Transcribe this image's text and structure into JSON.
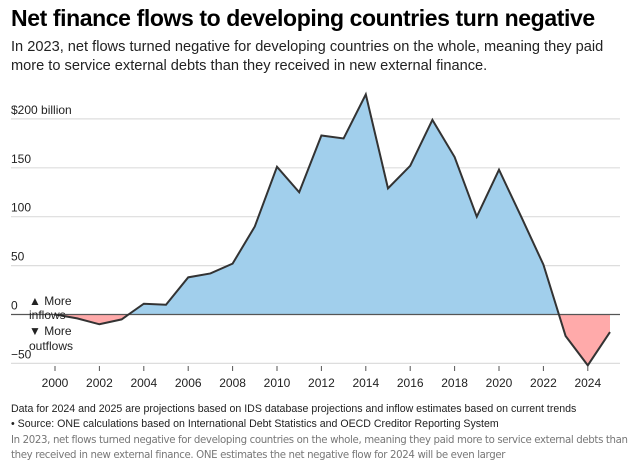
{
  "header": {
    "title": "Net finance flows to developing countries turn negative",
    "subtitle": "In 2023, net flows turned negative for developing countries on the whole, meaning they paid more to service external debts than they received in new external finance."
  },
  "chart_data": {
    "type": "area",
    "title": "Net finance flows to developing countries turn negative",
    "xlabel": "",
    "ylabel": "$ billion",
    "x": [
      2000,
      2001,
      2002,
      2003,
      2004,
      2005,
      2006,
      2007,
      2008,
      2009,
      2010,
      2011,
      2012,
      2013,
      2014,
      2015,
      2016,
      2017,
      2018,
      2019,
      2020,
      2021,
      2022,
      2023,
      2024,
      2025
    ],
    "series": [
      {
        "name": "Net finance flows",
        "values": [
          0,
          -4,
          -10,
          -5,
          11,
          10,
          38,
          42,
          52,
          90,
          151,
          125,
          183,
          180,
          225,
          129,
          152,
          199,
          161,
          100,
          148,
          100,
          51,
          -22,
          -52,
          -18
        ]
      }
    ],
    "ylim": [
      -55,
      230
    ],
    "xlim": [
      1999.5,
      2025.5
    ],
    "y_ticks": [
      {
        "value": 200,
        "label": "$200 billion"
      },
      {
        "value": 150,
        "label": "150"
      },
      {
        "value": 100,
        "label": "100"
      },
      {
        "value": 50,
        "label": "50"
      },
      {
        "value": 0,
        "label": "0"
      },
      {
        "value": -50,
        "label": "−50"
      }
    ],
    "x_ticks": [
      2000,
      2002,
      2004,
      2006,
      2008,
      2010,
      2012,
      2014,
      2016,
      2018,
      2020,
      2022,
      2024
    ],
    "x_tick_labels": [
      "2000",
      "2002",
      "2004",
      "2006",
      "2008",
      "2010",
      "2012",
      "2014",
      "2016",
      "2018",
      "2020",
      "2022",
      "2024"
    ],
    "grid": true,
    "annotations": {
      "up": "▲ More inflows",
      "up_line1": "▲ More",
      "up_line2": "inflows",
      "down_line1": "▼ More",
      "down_line2": "outflows"
    },
    "colors": {
      "positive_fill": "#a1cfec",
      "negative_fill": "#ffaaaa",
      "line": "#333333",
      "grid": "#dddddd",
      "zero_line": "#555555"
    }
  },
  "footer": {
    "note": "Data for 2024 and 2025 are projections based on IDS database projections and inflow estimates based on current trends",
    "source": "• Source: ONE calculations based on International Debt Statistics and OECD Creditor Reporting System",
    "caption": "In 2023, net flows turned negative for developing countries on the whole, meaning they paid more to service external debts than they received in new external finance. ONE estimates the net negative flow for 2024 will be even larger"
  }
}
